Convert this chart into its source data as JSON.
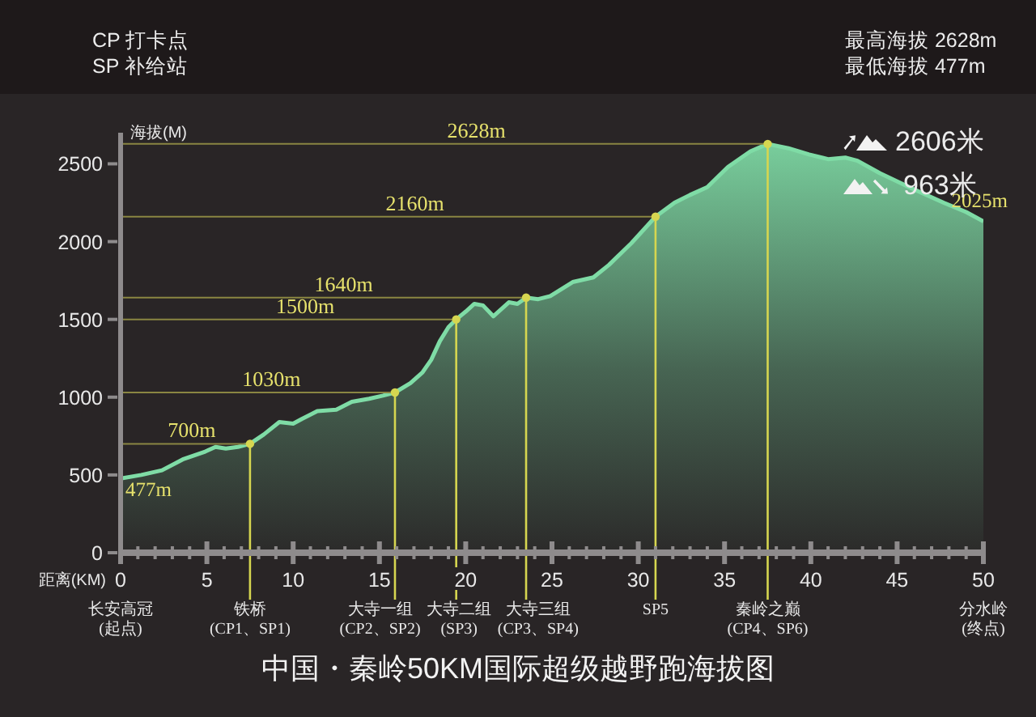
{
  "chart_data": {
    "type": "area",
    "title": "中国・秦岭50KM国际超级越野跑海拔图",
    "xlabel": "距离(KM)",
    "ylabel": "海拔(M)",
    "x": [
      0,
      1.2,
      2.4,
      3.6,
      4.9,
      5.5,
      6.1,
      6.8,
      7.5,
      8.3,
      9.2,
      10.0,
      10.5,
      11.4,
      12.5,
      13.4,
      14.4,
      15.2,
      15.9,
      16.8,
      17.5,
      18.0,
      18.5,
      19.0,
      19.45,
      20.0,
      20.5,
      21.0,
      21.6,
      22.5,
      23.0,
      23.5,
      24.2,
      24.9,
      26.2,
      27.4,
      28.3,
      29.6,
      31.0,
      32.1,
      33.0,
      34.0,
      35.2,
      36.5,
      37.5,
      38.7,
      39.9,
      41.0,
      42.0,
      42.7,
      44.0,
      45.9,
      47.7,
      49.0,
      50
    ],
    "series": [
      {
        "color": "#7fdca6",
        "values": [
          477,
          500,
          530,
          600,
          650,
          680,
          670,
          680,
          700,
          760,
          840,
          830,
          860,
          910,
          920,
          970,
          990,
          1010,
          1030,
          1090,
          1160,
          1240,
          1360,
          1450,
          1500,
          1550,
          1600,
          1590,
          1520,
          1610,
          1600,
          1640,
          1630,
          1650,
          1740,
          1770,
          1850,
          1990,
          2160,
          2250,
          2300,
          2350,
          2480,
          2580,
          2628,
          2600,
          2560,
          2530,
          2540,
          2520,
          2440,
          2340,
          2250,
          2190,
          2130
        ]
      }
    ],
    "xlim": [
      0,
      50
    ],
    "xticks": [
      0,
      {
        "value": 1,
        "label": null
      },
      {
        "value": 2,
        "label": null
      },
      {
        "value": 3,
        "label": null
      },
      {
        "value": 4,
        "label": null
      },
      5,
      {
        "value": 6,
        "label": null
      },
      {
        "value": 7,
        "label": null
      },
      {
        "value": 8,
        "label": null
      },
      {
        "value": 9,
        "label": null
      },
      10,
      {
        "value": 11,
        "label": null
      },
      {
        "value": 12,
        "label": null
      },
      {
        "value": 13,
        "label": null
      },
      {
        "value": 14,
        "label": null
      },
      15,
      {
        "value": 16,
        "label": null
      },
      {
        "value": 17,
        "label": null
      },
      {
        "value": 18,
        "label": null
      },
      {
        "value": 19,
        "label": null
      },
      20,
      {
        "value": 21,
        "label": null
      },
      {
        "value": 22,
        "label": null
      },
      {
        "value": 23,
        "label": null
      },
      {
        "value": 24,
        "label": null
      },
      25,
      {
        "value": 26,
        "label": null
      },
      {
        "value": 27,
        "label": null
      },
      {
        "value": 28,
        "label": null
      },
      {
        "value": 29,
        "label": null
      },
      30,
      {
        "value": 31,
        "label": null
      },
      {
        "value": 32,
        "label": null
      },
      {
        "value": 33,
        "label": null
      },
      {
        "value": 34,
        "label": null
      },
      35,
      {
        "value": 36,
        "label": null
      },
      {
        "value": 37,
        "label": null
      },
      {
        "value": 38,
        "label": null
      },
      {
        "value": 39,
        "label": null
      },
      40,
      {
        "value": 41,
        "label": null
      },
      {
        "value": 42,
        "label": null
      },
      {
        "value": 43,
        "label": null
      },
      {
        "value": 44,
        "label": null
      },
      45,
      {
        "value": 46,
        "label": null
      },
      {
        "value": 47,
        "label": null
      },
      {
        "value": 48,
        "label": null
      },
      {
        "value": 49,
        "label": null
      },
      50
    ],
    "ylim": [
      0,
      2700
    ],
    "yticks": [
      0,
      500,
      1000,
      1500,
      2000,
      2500
    ],
    "ref_lines": [
      {
        "axis": "y",
        "value": 2628,
        "label": "2628m",
        "color": "#8a8642"
      },
      {
        "axis": "y",
        "value": 2160,
        "label": "2160m",
        "color": "#8a8642"
      },
      {
        "axis": "y",
        "value": 1640,
        "label": "1640m",
        "color": "#8a8642"
      },
      {
        "axis": "y",
        "value": 1500,
        "label": "1500m",
        "color": "#8a8642"
      },
      {
        "axis": "y",
        "value": 1030,
        "label": "1030m",
        "color": "#8a8642"
      },
      {
        "axis": "y",
        "value": 700,
        "label": "700m",
        "color": "#8a8642"
      },
      {
        "axis": "x",
        "value": 7.5,
        "label": "铁桥\n(CP1、SP1)",
        "color": "#d6d650"
      },
      {
        "axis": "x",
        "value": 15.9,
        "label": "大寺一组\n(CP2、SP2)",
        "color": "#d6d650"
      },
      {
        "axis": "x",
        "value": 19.45,
        "label": "大寺二组\n(SP3)",
        "color": "#d6d650"
      },
      {
        "axis": "x",
        "value": 23.5,
        "label": "大寺三组\n(CP3、SP4)",
        "color": "#d6d650"
      },
      {
        "axis": "x",
        "value": 31,
        "label": "SP5",
        "color": "#d6d650"
      },
      {
        "axis": "x",
        "value": 37.5,
        "label": "秦岭之巅\n(CP4、SP6)",
        "color": "#d6d650"
      }
    ],
    "annotations": [
      "CP 打卡点",
      "SP 补给站",
      "最高海拔 2628m",
      "最低海拔 477m",
      "2606米",
      "963米",
      "长安高冠\n(起点)",
      "分水岭\n(终点)",
      {
        "text": "477m",
        "x": 0,
        "y": 477
      },
      {
        "text": "2025m",
        "x": 50,
        "y": 2130
      }
    ]
  }
}
